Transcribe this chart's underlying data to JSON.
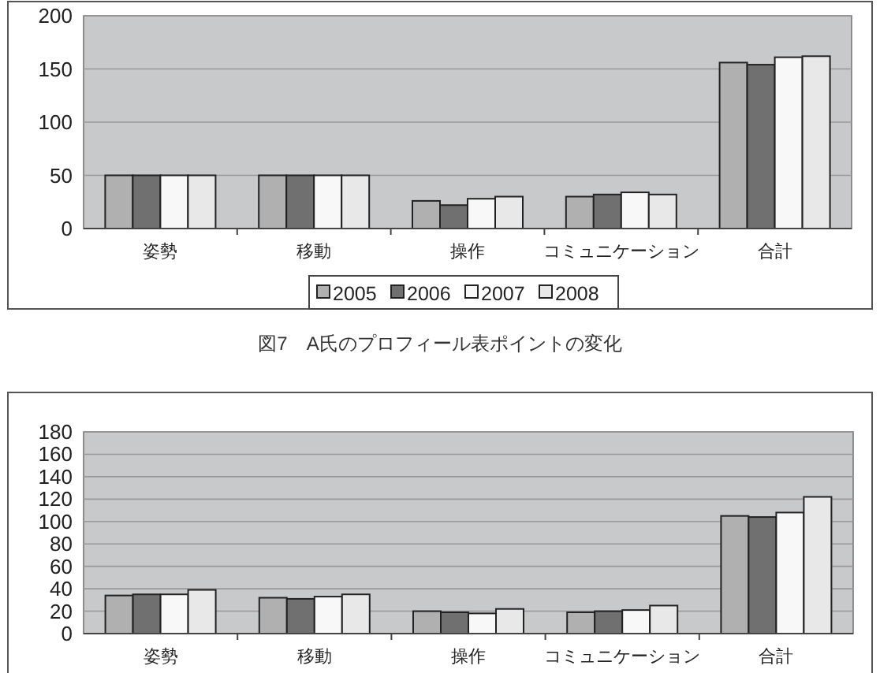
{
  "chart_data": [
    {
      "type": "bar",
      "categories": [
        "姿勢",
        "移動",
        "操作",
        "コミュニケーション",
        "合計"
      ],
      "series": [
        {
          "name": "2005",
          "color": "#b0b0b0",
          "values": [
            50,
            50,
            26,
            30,
            156
          ]
        },
        {
          "name": "2006",
          "color": "#707070",
          "values": [
            50,
            50,
            22,
            32,
            154
          ]
        },
        {
          "name": "2007",
          "color": "#f8f8f8",
          "values": [
            50,
            50,
            28,
            34,
            161
          ]
        },
        {
          "name": "2008",
          "color": "#e8e8e8",
          "values": [
            50,
            50,
            30,
            32,
            162
          ]
        }
      ],
      "ylim": [
        0,
        200
      ],
      "yticks": [
        0,
        50,
        100,
        150,
        200
      ],
      "grid": "y",
      "legend": "bottom",
      "annotations": [
        "図7　A氏のプロフィール表ポイントの変化"
      ]
    },
    {
      "type": "bar",
      "categories": [
        "姿勢",
        "移動",
        "操作",
        "コミュニケーション",
        "合計"
      ],
      "series": [
        {
          "color": "#b0b0b0",
          "values": [
            34,
            32,
            20,
            19,
            105
          ]
        },
        {
          "color": "#707070",
          "values": [
            35,
            31,
            19,
            20,
            104
          ]
        },
        {
          "color": "#f8f8f8",
          "values": [
            35,
            33,
            18,
            21,
            108
          ]
        },
        {
          "color": "#e8e8e8",
          "values": [
            39,
            35,
            22,
            25,
            122
          ]
        }
      ],
      "ylim": [
        0,
        180
      ],
      "yticks": [
        0,
        20,
        40,
        60,
        80,
        100,
        120,
        140,
        160,
        180
      ],
      "grid": "y"
    }
  ]
}
